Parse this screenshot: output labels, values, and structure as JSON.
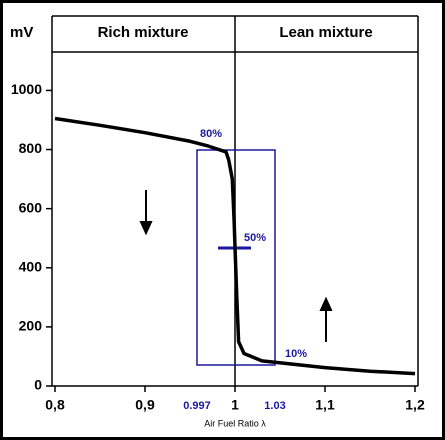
{
  "chart_data": {
    "type": "line",
    "y_unit": "mV",
    "regions": [
      "Rich mixture",
      "Lean mixture"
    ],
    "x_label": "Air Fuel Ratio λ",
    "x": [
      0.8,
      0.85,
      0.9,
      0.95,
      0.97,
      0.99,
      0.993,
      0.997,
      0.999,
      1.0,
      1.002,
      1.004,
      1.01,
      1.03,
      1.1,
      1.15,
      1.2
    ],
    "series": [
      {
        "color": "#000000",
        "values": [
          905,
          882,
          857,
          828,
          812,
          792,
          765,
          700,
          560,
          470,
          300,
          150,
          110,
          85,
          62,
          50,
          42
        ]
      }
    ],
    "xlim": [
      0.8,
      1.2
    ],
    "ylim": [
      0,
      1130
    ],
    "xticks": [
      {
        "value": 0.8,
        "label": "0,8"
      },
      {
        "value": 0.9,
        "label": "0,9"
      },
      {
        "value": 1,
        "label": "1"
      },
      {
        "value": 1.1,
        "label": "1,1"
      },
      {
        "value": 1.2,
        "label": "1,2"
      }
    ],
    "yticks": [
      0,
      200,
      400,
      600,
      800,
      1000
    ],
    "annotations": [
      "80%",
      "50%",
      "10%",
      "0.997",
      "1.03"
    ],
    "annotation_color": "#1a1aa0"
  }
}
